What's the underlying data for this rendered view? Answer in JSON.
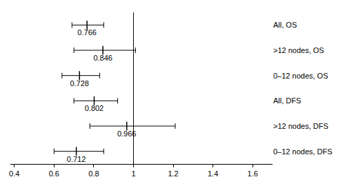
{
  "chart_data": {
    "type": "forest",
    "categories": [
      "All, OS",
      ">12 nodes, OS",
      "0–12 nodes, OS",
      "All, DFS",
      ">12 nodes, DFS",
      "0–12 nodes, DFS"
    ],
    "values": [
      0.766,
      0.846,
      0.728,
      0.802,
      0.966,
      0.712
    ],
    "ci_lower": [
      0.69,
      0.7,
      0.64,
      0.7,
      0.78,
      0.6
    ],
    "ci_upper": [
      0.85,
      1.01,
      0.83,
      0.92,
      1.21,
      0.85
    ],
    "reference": 1,
    "xlim": [
      0.38,
      1.7
    ],
    "xticks": [
      0.4,
      0.6,
      0.8,
      1,
      1.2,
      1.4,
      1.6
    ],
    "data_labels": true,
    "grid": false,
    "color": "#000000",
    "marker": "line-ns"
  }
}
